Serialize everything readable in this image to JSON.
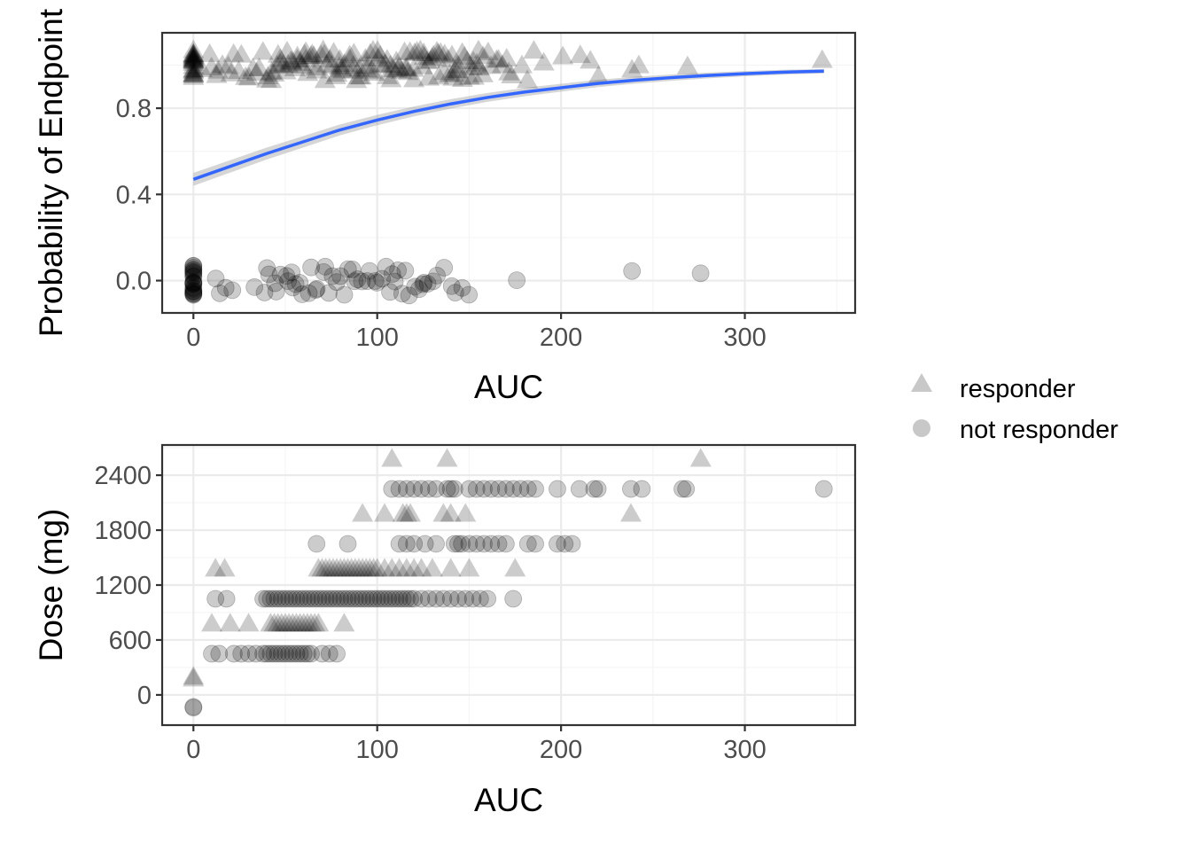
{
  "legend": {
    "position": "right",
    "items": [
      {
        "label": "responder",
        "shape": "triangle"
      },
      {
        "label": "not responder",
        "shape": "circle"
      }
    ]
  },
  "colors": {
    "points": "#000000",
    "fit_line": "#3366FF",
    "ribbon": "#999999",
    "legend_key": "#c8c8c8"
  },
  "chart_data": [
    {
      "type": "scatter",
      "id": "probability-vs-auc",
      "xlabel": "AUC",
      "ylabel": "Probability of Endpoint",
      "xlim": [
        -17,
        360
      ],
      "ylim": [
        -0.15,
        1.15
      ],
      "xticks": [
        "0",
        "100",
        "200",
        "300"
      ],
      "xtick_values": [
        0,
        100,
        200,
        300
      ],
      "yticks": [
        "0.0",
        "0.4",
        "0.8"
      ],
      "ytick_values": [
        0.0,
        0.4,
        0.8
      ],
      "grid": true,
      "jitter": 0.07,
      "series": [
        {
          "name": "responder",
          "shape": "triangle",
          "y": 1,
          "x": [
            0,
            0,
            0,
            0,
            0,
            0,
            0,
            0,
            0,
            0,
            0,
            0,
            0,
            0,
            0,
            0,
            0,
            0,
            0,
            0,
            0,
            0,
            0,
            0,
            5,
            8,
            10,
            12,
            14,
            16,
            18,
            20,
            22,
            24,
            26,
            28,
            30,
            32,
            34,
            36,
            38,
            40,
            41,
            42,
            43,
            44,
            45,
            46,
            47,
            48,
            49,
            50,
            51,
            52,
            53,
            54,
            55,
            56,
            57,
            58,
            59,
            60,
            61,
            62,
            63,
            64,
            65,
            66,
            67,
            68,
            69,
            70,
            71,
            72,
            73,
            74,
            75,
            76,
            77,
            78,
            79,
            80,
            81,
            82,
            83,
            84,
            85,
            86,
            87,
            88,
            89,
            90,
            91,
            92,
            93,
            94,
            95,
            96,
            97,
            98,
            99,
            100,
            101,
            102,
            103,
            104,
            105,
            106,
            107,
            108,
            109,
            110,
            111,
            112,
            113,
            114,
            115,
            116,
            117,
            118,
            119,
            120,
            121,
            122,
            123,
            124,
            125,
            126,
            127,
            128,
            129,
            130,
            131,
            132,
            133,
            134,
            135,
            136,
            137,
            138,
            139,
            140,
            141,
            142,
            143,
            144,
            145,
            146,
            147,
            148,
            149,
            150,
            151,
            152,
            153,
            154,
            155,
            156,
            157,
            158,
            160,
            162,
            164,
            166,
            168,
            170,
            172,
            174,
            178,
            182,
            186,
            190,
            200,
            210,
            215,
            220,
            238,
            242,
            268,
            343
          ]
        },
        {
          "name": "not responder",
          "shape": "circle",
          "y": 0,
          "x": [
            0,
            0,
            0,
            0,
            0,
            0,
            0,
            0,
            0,
            0,
            0,
            0,
            0,
            0,
            0,
            0,
            0,
            0,
            0,
            0,
            0,
            0,
            0,
            0,
            12,
            14,
            18,
            22,
            34,
            38,
            40,
            42,
            44,
            46,
            48,
            50,
            52,
            54,
            55,
            56,
            58,
            60,
            62,
            64,
            66,
            68,
            70,
            72,
            74,
            76,
            78,
            80,
            82,
            84,
            86,
            88,
            90,
            92,
            94,
            96,
            98,
            100,
            102,
            104,
            106,
            108,
            110,
            112,
            114,
            116,
            118,
            120,
            122,
            124,
            126,
            128,
            130,
            132,
            136,
            140,
            142,
            146,
            150,
            175,
            238,
            276
          ]
        }
      ],
      "fit": {
        "type": "logistic",
        "x": [
          0,
          20,
          40,
          60,
          80,
          100,
          120,
          140,
          160,
          180,
          200,
          220,
          240,
          260,
          280,
          300,
          320,
          343
        ],
        "y": [
          0.47,
          0.53,
          0.59,
          0.645,
          0.7,
          0.745,
          0.785,
          0.82,
          0.85,
          0.875,
          0.895,
          0.915,
          0.93,
          0.942,
          0.952,
          0.96,
          0.967,
          0.972
        ]
      }
    },
    {
      "type": "scatter",
      "id": "dose-vs-auc",
      "xlabel": "AUC",
      "ylabel": "Dose (mg)",
      "xlim": [
        -17,
        360
      ],
      "ylim": [
        -330,
        2730
      ],
      "xticks": [
        "0",
        "100",
        "200",
        "300"
      ],
      "xtick_values": [
        0,
        100,
        200,
        300
      ],
      "yticks": [
        "0",
        "600",
        "1200",
        "1800",
        "2400"
      ],
      "ytick_values": [
        0,
        600,
        1200,
        1800,
        2400
      ],
      "grid": true,
      "series": [
        {
          "name": "responder",
          "shape": "triangle",
          "points": [
            [
              0,
              200
            ],
            [
              0,
              180
            ],
            [
              10,
              780
            ],
            [
              20,
              780
            ],
            [
              30,
              780
            ],
            [
              42,
              780
            ],
            [
              44,
              780
            ],
            [
              46,
              780
            ],
            [
              48,
              780
            ],
            [
              50,
              780
            ],
            [
              52,
              780
            ],
            [
              54,
              780
            ],
            [
              56,
              780
            ],
            [
              58,
              780
            ],
            [
              60,
              780
            ],
            [
              62,
              780
            ],
            [
              64,
              780
            ],
            [
              66,
              780
            ],
            [
              68,
              780
            ],
            [
              82,
              780
            ],
            [
              12,
              1380
            ],
            [
              17,
              1380
            ],
            [
              68,
              1380
            ],
            [
              70,
              1380
            ],
            [
              72,
              1380
            ],
            [
              74,
              1380
            ],
            [
              76,
              1380
            ],
            [
              78,
              1380
            ],
            [
              80,
              1380
            ],
            [
              82,
              1380
            ],
            [
              84,
              1380
            ],
            [
              86,
              1380
            ],
            [
              88,
              1380
            ],
            [
              90,
              1380
            ],
            [
              92,
              1380
            ],
            [
              94,
              1380
            ],
            [
              96,
              1380
            ],
            [
              98,
              1380
            ],
            [
              100,
              1380
            ],
            [
              104,
              1380
            ],
            [
              108,
              1380
            ],
            [
              112,
              1380
            ],
            [
              116,
              1380
            ],
            [
              120,
              1380
            ],
            [
              124,
              1380
            ],
            [
              130,
              1380
            ],
            [
              140,
              1380
            ],
            [
              150,
              1380
            ],
            [
              175,
              1380
            ],
            [
              92,
              1980
            ],
            [
              104,
              1980
            ],
            [
              114,
              1980
            ],
            [
              116,
              1980
            ],
            [
              118,
              1980
            ],
            [
              136,
              1980
            ],
            [
              140,
              1980
            ],
            [
              148,
              1980
            ],
            [
              238,
              1980
            ],
            [
              108,
              2580
            ],
            [
              138,
              2580
            ],
            [
              276,
              2580
            ]
          ]
        },
        {
          "name": "not responder",
          "shape": "circle",
          "points": [
            [
              0,
              -130
            ],
            [
              0,
              -140
            ],
            [
              10,
              450
            ],
            [
              14,
              450
            ],
            [
              22,
              450
            ],
            [
              26,
              450
            ],
            [
              30,
              450
            ],
            [
              34,
              450
            ],
            [
              38,
              450
            ],
            [
              40,
              450
            ],
            [
              42,
              450
            ],
            [
              44,
              450
            ],
            [
              46,
              450
            ],
            [
              48,
              450
            ],
            [
              50,
              450
            ],
            [
              52,
              450
            ],
            [
              54,
              450
            ],
            [
              56,
              450
            ],
            [
              58,
              450
            ],
            [
              60,
              450
            ],
            [
              62,
              450
            ],
            [
              64,
              450
            ],
            [
              70,
              450
            ],
            [
              74,
              450
            ],
            [
              78,
              450
            ],
            [
              12,
              1050
            ],
            [
              18,
              1050
            ],
            [
              38,
              1050
            ],
            [
              40,
              1050
            ],
            [
              42,
              1050
            ],
            [
              44,
              1050
            ],
            [
              46,
              1050
            ],
            [
              48,
              1050
            ],
            [
              50,
              1050
            ],
            [
              52,
              1050
            ],
            [
              54,
              1050
            ],
            [
              56,
              1050
            ],
            [
              58,
              1050
            ],
            [
              60,
              1050
            ],
            [
              62,
              1050
            ],
            [
              64,
              1050
            ],
            [
              66,
              1050
            ],
            [
              68,
              1050
            ],
            [
              70,
              1050
            ],
            [
              72,
              1050
            ],
            [
              74,
              1050
            ],
            [
              76,
              1050
            ],
            [
              78,
              1050
            ],
            [
              80,
              1050
            ],
            [
              82,
              1050
            ],
            [
              84,
              1050
            ],
            [
              86,
              1050
            ],
            [
              88,
              1050
            ],
            [
              90,
              1050
            ],
            [
              92,
              1050
            ],
            [
              94,
              1050
            ],
            [
              96,
              1050
            ],
            [
              98,
              1050
            ],
            [
              100,
              1050
            ],
            [
              102,
              1050
            ],
            [
              104,
              1050
            ],
            [
              106,
              1050
            ],
            [
              108,
              1050
            ],
            [
              110,
              1050
            ],
            [
              112,
              1050
            ],
            [
              114,
              1050
            ],
            [
              116,
              1050
            ],
            [
              118,
              1050
            ],
            [
              120,
              1050
            ],
            [
              124,
              1050
            ],
            [
              128,
              1050
            ],
            [
              132,
              1050
            ],
            [
              136,
              1050
            ],
            [
              140,
              1050
            ],
            [
              144,
              1050
            ],
            [
              148,
              1050
            ],
            [
              152,
              1050
            ],
            [
              156,
              1050
            ],
            [
              160,
              1050
            ],
            [
              174,
              1050
            ],
            [
              67,
              1650
            ],
            [
              84,
              1650
            ],
            [
              112,
              1650
            ],
            [
              116,
              1650
            ],
            [
              120,
              1650
            ],
            [
              126,
              1650
            ],
            [
              132,
              1650
            ],
            [
              142,
              1650
            ],
            [
              144,
              1650
            ],
            [
              146,
              1650
            ],
            [
              150,
              1650
            ],
            [
              154,
              1650
            ],
            [
              158,
              1650
            ],
            [
              162,
              1650
            ],
            [
              166,
              1650
            ],
            [
              170,
              1650
            ],
            [
              182,
              1650
            ],
            [
              186,
              1650
            ],
            [
              198,
              1650
            ],
            [
              202,
              1650
            ],
            [
              206,
              1650
            ],
            [
              108,
              2250
            ],
            [
              112,
              2250
            ],
            [
              116,
              2250
            ],
            [
              120,
              2250
            ],
            [
              124,
              2250
            ],
            [
              128,
              2250
            ],
            [
              132,
              2250
            ],
            [
              138,
              2250
            ],
            [
              140,
              2250
            ],
            [
              142,
              2250
            ],
            [
              150,
              2250
            ],
            [
              154,
              2250
            ],
            [
              158,
              2250
            ],
            [
              162,
              2250
            ],
            [
              166,
              2250
            ],
            [
              170,
              2250
            ],
            [
              174,
              2250
            ],
            [
              178,
              2250
            ],
            [
              182,
              2250
            ],
            [
              186,
              2250
            ],
            [
              198,
              2250
            ],
            [
              210,
              2250
            ],
            [
              218,
              2250
            ],
            [
              220,
              2250
            ],
            [
              238,
              2250
            ],
            [
              244,
              2250
            ],
            [
              266,
              2250
            ],
            [
              268,
              2250
            ],
            [
              343,
              2250
            ]
          ]
        }
      ]
    }
  ]
}
